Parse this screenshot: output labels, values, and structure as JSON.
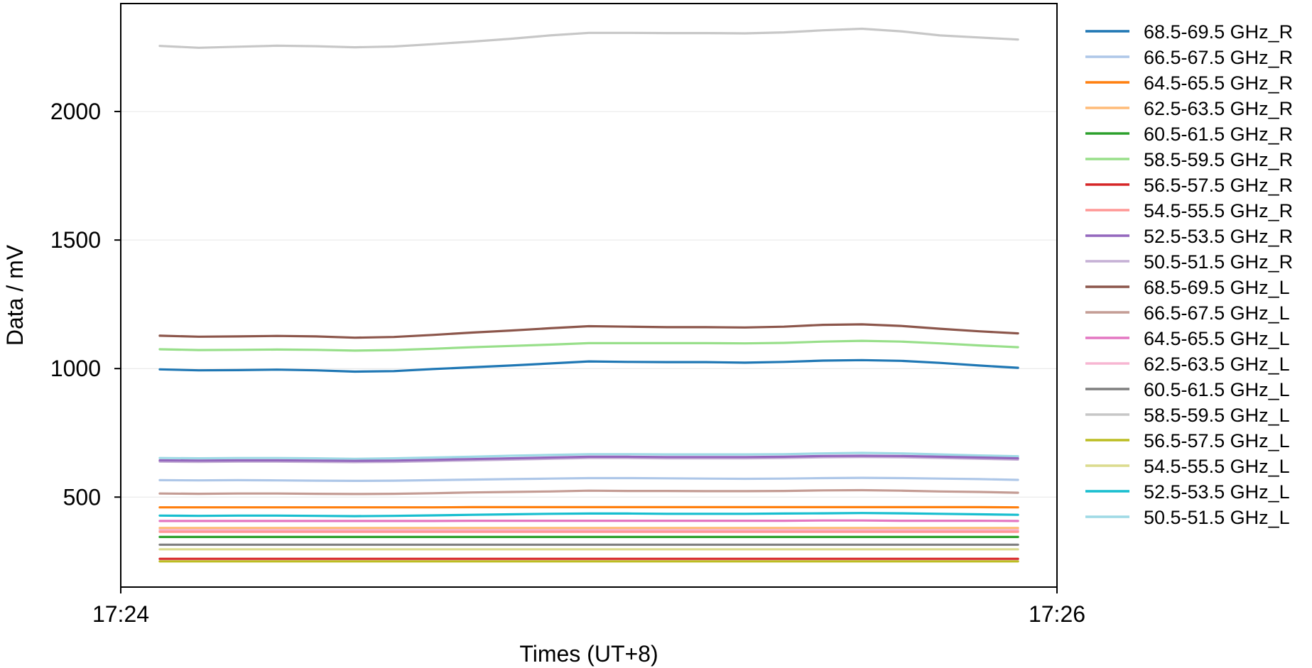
{
  "chart_data": {
    "type": "line",
    "title": "",
    "xlabel": "Times (UT+8)",
    "ylabel": "Data / mV",
    "xlim": [
      "17:24",
      "17:26"
    ],
    "ylim": [
      150,
      2420
    ],
    "xticks": [
      "17:24",
      "17:26"
    ],
    "yticks": [
      500,
      1000,
      1500,
      2000
    ],
    "grid": "horizontal",
    "legend_position": "outside-right",
    "x": [
      "17:24:05",
      "17:24:10",
      "17:24:15",
      "17:24:20",
      "17:24:25",
      "17:24:30",
      "17:24:35",
      "17:24:40",
      "17:24:45",
      "17:24:50",
      "17:24:55",
      "17:25:00",
      "17:25:05",
      "17:25:10",
      "17:25:15",
      "17:25:20",
      "17:25:25",
      "17:25:30",
      "17:25:35",
      "17:25:40",
      "17:25:45",
      "17:25:50",
      "17:25:55"
    ],
    "series": [
      {
        "name": "68.5-69.5 GHz_R",
        "color": "#1f77b4",
        "values": [
          997,
          993,
          994,
          996,
          993,
          988,
          990,
          998,
          1005,
          1012,
          1020,
          1028,
          1026,
          1025,
          1025,
          1023,
          1026,
          1031,
          1033,
          1030,
          1022,
          1012,
          1003
        ]
      },
      {
        "name": "66.5-67.5 GHz_R",
        "color": "#aec7e8",
        "values": [
          566,
          565,
          566,
          565,
          564,
          563,
          564,
          566,
          568,
          570,
          572,
          574,
          574,
          573,
          572,
          571,
          572,
          574,
          575,
          574,
          572,
          570,
          567
        ]
      },
      {
        "name": "64.5-65.5 GHz_R",
        "color": "#ff7f0e",
        "values": [
          460,
          460,
          460,
          460,
          460,
          460,
          460,
          460,
          461,
          461,
          461,
          461,
          461,
          461,
          461,
          461,
          461,
          461,
          461,
          461,
          461,
          461,
          460
        ]
      },
      {
        "name": "62.5-63.5 GHz_R",
        "color": "#ffbb78",
        "values": [
          380,
          380,
          380,
          380,
          380,
          380,
          380,
          380,
          380,
          380,
          380,
          380,
          380,
          380,
          380,
          380,
          380,
          380,
          380,
          380,
          380,
          380,
          380
        ]
      },
      {
        "name": "60.5-61.5 GHz_R",
        "color": "#2ca02c",
        "values": [
          345,
          345,
          345,
          345,
          345,
          345,
          345,
          345,
          345,
          345,
          345,
          345,
          345,
          345,
          345,
          345,
          345,
          345,
          345,
          345,
          345,
          345,
          345
        ]
      },
      {
        "name": "58.5-59.5 GHz_R",
        "color": "#98df8a",
        "values": [
          1075,
          1072,
          1073,
          1074,
          1073,
          1070,
          1072,
          1077,
          1083,
          1088,
          1093,
          1099,
          1099,
          1099,
          1099,
          1098,
          1100,
          1105,
          1108,
          1105,
          1098,
          1090,
          1083
        ]
      },
      {
        "name": "56.5-57.5 GHz_R",
        "color": "#d62728",
        "values": [
          260,
          260,
          260,
          260,
          260,
          260,
          260,
          260,
          260,
          260,
          260,
          260,
          260,
          260,
          260,
          260,
          260,
          260,
          260,
          260,
          260,
          260,
          260
        ]
      },
      {
        "name": "54.5-55.5 GHz_R",
        "color": "#ff9896",
        "values": [
          365,
          365,
          365,
          365,
          365,
          365,
          365,
          365,
          365,
          365,
          365,
          365,
          365,
          365,
          365,
          365,
          365,
          365,
          365,
          365,
          365,
          365,
          365
        ]
      },
      {
        "name": "52.5-53.5 GHz_R",
        "color": "#9467bd",
        "values": [
          643,
          642,
          643,
          643,
          642,
          641,
          642,
          645,
          648,
          651,
          654,
          657,
          657,
          656,
          656,
          656,
          657,
          660,
          661,
          660,
          657,
          654,
          651
        ]
      },
      {
        "name": "50.5-51.5 GHz_R",
        "color": "#c5b0d5",
        "values": [
          638,
          637,
          638,
          638,
          637,
          636,
          637,
          640,
          643,
          646,
          649,
          652,
          652,
          651,
          651,
          651,
          652,
          655,
          656,
          655,
          652,
          649,
          646
        ]
      },
      {
        "name": "68.5-69.5 GHz_L",
        "color": "#8c564b",
        "values": [
          1128,
          1124,
          1125,
          1127,
          1125,
          1120,
          1123,
          1131,
          1140,
          1148,
          1157,
          1165,
          1163,
          1161,
          1161,
          1160,
          1163,
          1170,
          1172,
          1166,
          1155,
          1145,
          1137
        ]
      },
      {
        "name": "66.5-67.5 GHz_L",
        "color": "#c49c94",
        "values": [
          514,
          513,
          514,
          514,
          513,
          512,
          513,
          515,
          518,
          520,
          522,
          525,
          524,
          524,
          523,
          523,
          524,
          526,
          527,
          525,
          522,
          520,
          517
        ]
      },
      {
        "name": "64.5-65.5 GHz_L",
        "color": "#e377c2",
        "values": [
          407,
          407,
          407,
          407,
          407,
          407,
          407,
          407,
          408,
          408,
          408,
          408,
          408,
          408,
          408,
          408,
          408,
          409,
          409,
          408,
          408,
          408,
          407
        ]
      },
      {
        "name": "62.5-63.5 GHz_L",
        "color": "#f7b6d2",
        "values": [
          372,
          372,
          372,
          372,
          372,
          372,
          372,
          372,
          372,
          372,
          372,
          372,
          372,
          372,
          372,
          372,
          372,
          372,
          372,
          372,
          372,
          372,
          372
        ]
      },
      {
        "name": "60.5-61.5 GHz_L",
        "color": "#7f7f7f",
        "values": [
          315,
          315,
          315,
          315,
          315,
          315,
          315,
          315,
          315,
          315,
          315,
          315,
          315,
          315,
          315,
          315,
          315,
          315,
          315,
          315,
          315,
          315,
          315
        ]
      },
      {
        "name": "58.5-59.5 GHz_L",
        "color": "#c7c7c7",
        "values": [
          2255,
          2248,
          2252,
          2256,
          2254,
          2250,
          2253,
          2262,
          2272,
          2283,
          2296,
          2306,
          2306,
          2305,
          2305,
          2304,
          2308,
          2316,
          2322,
          2312,
          2296,
          2288,
          2280
        ]
      },
      {
        "name": "56.5-57.5 GHz_L",
        "color": "#bcbd22",
        "values": [
          250,
          250,
          250,
          250,
          250,
          250,
          250,
          250,
          250,
          250,
          250,
          250,
          250,
          250,
          250,
          250,
          250,
          250,
          250,
          250,
          250,
          250,
          250
        ]
      },
      {
        "name": "54.5-55.5 GHz_L",
        "color": "#dbdb8d",
        "values": [
          297,
          297,
          297,
          297,
          297,
          297,
          297,
          297,
          297,
          297,
          297,
          297,
          297,
          297,
          297,
          297,
          297,
          297,
          297,
          297,
          297,
          297,
          297
        ]
      },
      {
        "name": "52.5-53.5 GHz_L",
        "color": "#17becf",
        "values": [
          428,
          427,
          428,
          428,
          427,
          426,
          427,
          429,
          431,
          433,
          435,
          436,
          436,
          435,
          435,
          435,
          436,
          437,
          438,
          437,
          435,
          433,
          431
        ]
      },
      {
        "name": "50.5-51.5 GHz_L",
        "color": "#9edae5",
        "values": [
          652,
          651,
          652,
          652,
          651,
          649,
          651,
          654,
          657,
          661,
          664,
          667,
          667,
          666,
          666,
          666,
          667,
          670,
          672,
          670,
          666,
          662,
          659
        ]
      }
    ]
  }
}
